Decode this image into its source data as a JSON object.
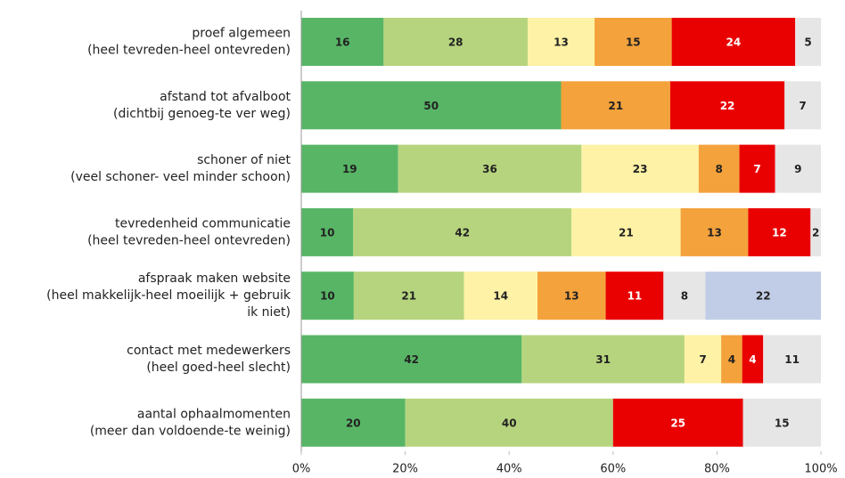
{
  "chart_data": {
    "type": "stacked_bar_100",
    "orientation": "horizontal",
    "categories": [
      "proef algemeen\n(heel tevreden-heel ontevreden)",
      "afstand tot afvalboot\n(dichtbij genoeg-te ver weg)",
      "schoner of niet\n(veel schoner- veel minder schoon)",
      "tevredenheid communicatie\n(heel tevreden-heel ontevreden)",
      "afspraak maken website\n(heel makkelijk-heel moeilijk + gebruik\nik niet)",
      "contact met medewerkers\n(heel goed-heel slecht)",
      "aantal ophaalmomenten\n(meer dan voldoende-te weinig)"
    ],
    "series": [
      {
        "color": "#58b566",
        "label_color": "#222",
        "values": [
          16,
          50,
          19,
          10,
          10,
          42,
          20
        ]
      },
      {
        "color": "#b6d47e",
        "label_color": "#222",
        "values": [
          28,
          null,
          36,
          42,
          21,
          31,
          40
        ]
      },
      {
        "color": "#fdf2a5",
        "label_color": "#222",
        "values": [
          13,
          null,
          23,
          21,
          14,
          7,
          null
        ]
      },
      {
        "color": "#f4a23b",
        "label_color": "#222",
        "values": [
          15,
          21,
          8,
          13,
          13,
          4,
          null
        ]
      },
      {
        "color": "#e90000",
        "label_color": "#fff",
        "values": [
          24,
          22,
          7,
          12,
          11,
          4,
          25
        ]
      },
      {
        "color": "#e6e6e6",
        "label_color": "#222",
        "values": [
          5,
          7,
          9,
          2,
          8,
          11,
          15
        ]
      },
      {
        "color": "#c1cde6",
        "label_color": "#222",
        "values": [
          null,
          null,
          null,
          null,
          22,
          null,
          null
        ]
      }
    ],
    "xlim": [
      0,
      100
    ],
    "xticks": [
      {
        "value": 0,
        "label": "0%"
      },
      {
        "value": 20,
        "label": "20%"
      },
      {
        "value": 40,
        "label": "40%"
      },
      {
        "value": 60,
        "label": "60%"
      },
      {
        "value": 80,
        "label": "80%"
      },
      {
        "value": 100,
        "label": "100%"
      }
    ]
  }
}
